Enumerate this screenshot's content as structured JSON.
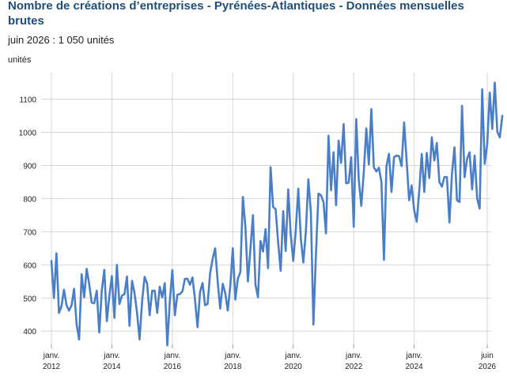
{
  "header": {
    "title": "Nombre de créations d’entreprises - Pyrénées-Atlantiques - Données mensuelles brutes",
    "subtitle": "juin 2026 : 1 050 unités"
  },
  "chart_data": {
    "type": "line",
    "title": "Nombre de créations d’entreprises - Pyrénées-Atlantiques - Données mensuelles brutes",
    "ylabel": "unités",
    "ylim": [
      360,
      1180
    ],
    "yticks": [
      400,
      500,
      600,
      700,
      800,
      900,
      1000,
      1100
    ],
    "x_start": "2012-01",
    "x_end": "2026-06",
    "xticks": [
      {
        "month": "2012-01",
        "line1": "janv.",
        "line2": "2012"
      },
      {
        "month": "2014-01",
        "line1": "janv.",
        "line2": "2014"
      },
      {
        "month": "2016-01",
        "line1": "janv.",
        "line2": "2016"
      },
      {
        "month": "2018-01",
        "line1": "janv.",
        "line2": "2018"
      },
      {
        "month": "2020-01",
        "line1": "janv.",
        "line2": "2020"
      },
      {
        "month": "2022-01",
        "line1": "janv.",
        "line2": "2022"
      },
      {
        "month": "2024-01",
        "line1": "janv.",
        "line2": "2024"
      },
      {
        "month": "2026-06",
        "line1": "juin",
        "line2": "2026"
      }
    ],
    "grid": true,
    "legend": "none",
    "line_color": "#4a7fc8",
    "series": [
      {
        "values": [
          612,
          500,
          635,
          455,
          475,
          525,
          478,
          462,
          478,
          528,
          420,
          375,
          572,
          502,
          588,
          542,
          486,
          484,
          522,
          396,
          523,
          585,
          430,
          506,
          566,
          440,
          600,
          482,
          507,
          512,
          565,
          416,
          552,
          515,
          455,
          375,
          490,
          564,
          543,
          448,
          522,
          522,
          455,
          534,
          502,
          545,
          357,
          490,
          584,
          448,
          510,
          512,
          520,
          558,
          558,
          540,
          562,
          495,
          412,
          518,
          545,
          478,
          482,
          575,
          618,
          650,
          550,
          468,
          543,
          515,
          462,
          536,
          650,
          495,
          558,
          578,
          805,
          715,
          550,
          648,
          750,
          540,
          502,
          672,
          640,
          708,
          590,
          895,
          775,
          768,
          668,
          582,
          762,
          642,
          828,
          690,
          612,
          705,
          830,
          680,
          607,
          700,
          858,
          758,
          420,
          630,
          815,
          810,
          790,
          695,
          990,
          825,
          940,
          780,
          975,
          908,
          1025,
          846,
          848,
          925,
          715,
          1040,
          858,
          778,
          880,
          1012,
          903,
          1070,
          894,
          882,
          893,
          850,
          615,
          898,
          935,
          820,
          925,
          930,
          928,
          898,
          1030,
          915,
          795,
          840,
          765,
          730,
          822,
          935,
          820,
          938,
          862,
          985,
          915,
          968,
          850,
          836,
          865,
          865,
          728,
          875,
          955,
          795,
          790,
          1080,
          865,
          920,
          940,
          828,
          930,
          800,
          770,
          1130,
          905,
          965,
          1120,
          1010,
          1150,
          1002,
          985,
          1050
        ]
      }
    ]
  }
}
